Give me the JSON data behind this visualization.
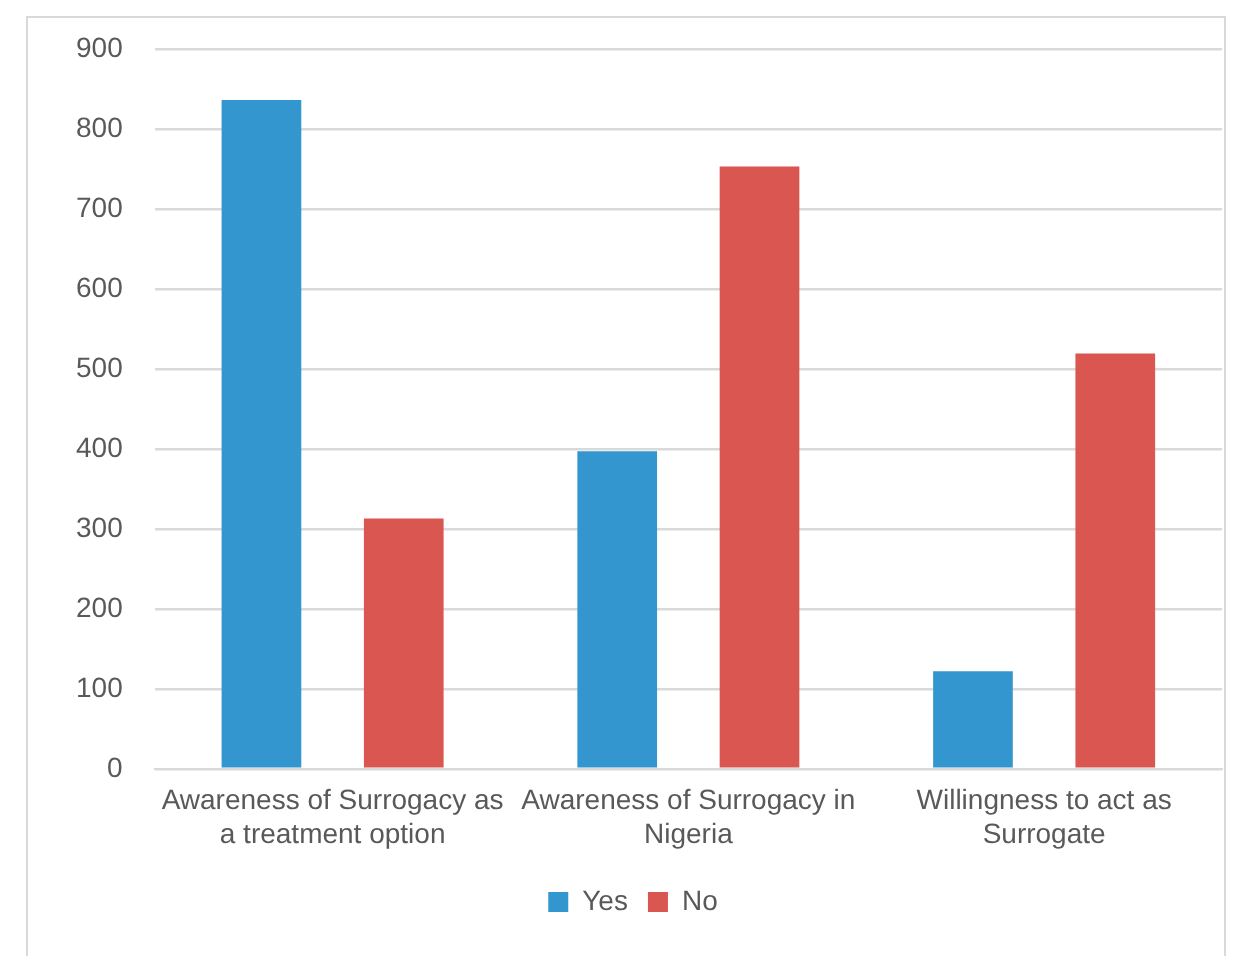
{
  "chart_data": {
    "type": "bar",
    "categories": [
      "Awareness of Surrogacy as a treatment option",
      "Awareness of Surrogacy in Nigeria",
      "Willingness to act as Surrogate"
    ],
    "series": [
      {
        "name": "Yes",
        "color": "#3496ce",
        "values": [
          836,
          397,
          122
        ]
      },
      {
        "name": "No",
        "color": "#d95750",
        "values": [
          313,
          753,
          519
        ]
      }
    ],
    "ylim": [
      0,
      900
    ],
    "yticks": [
      0,
      100,
      200,
      300,
      400,
      500,
      600,
      700,
      800,
      900
    ],
    "grid": "y",
    "legend": "bottom"
  }
}
